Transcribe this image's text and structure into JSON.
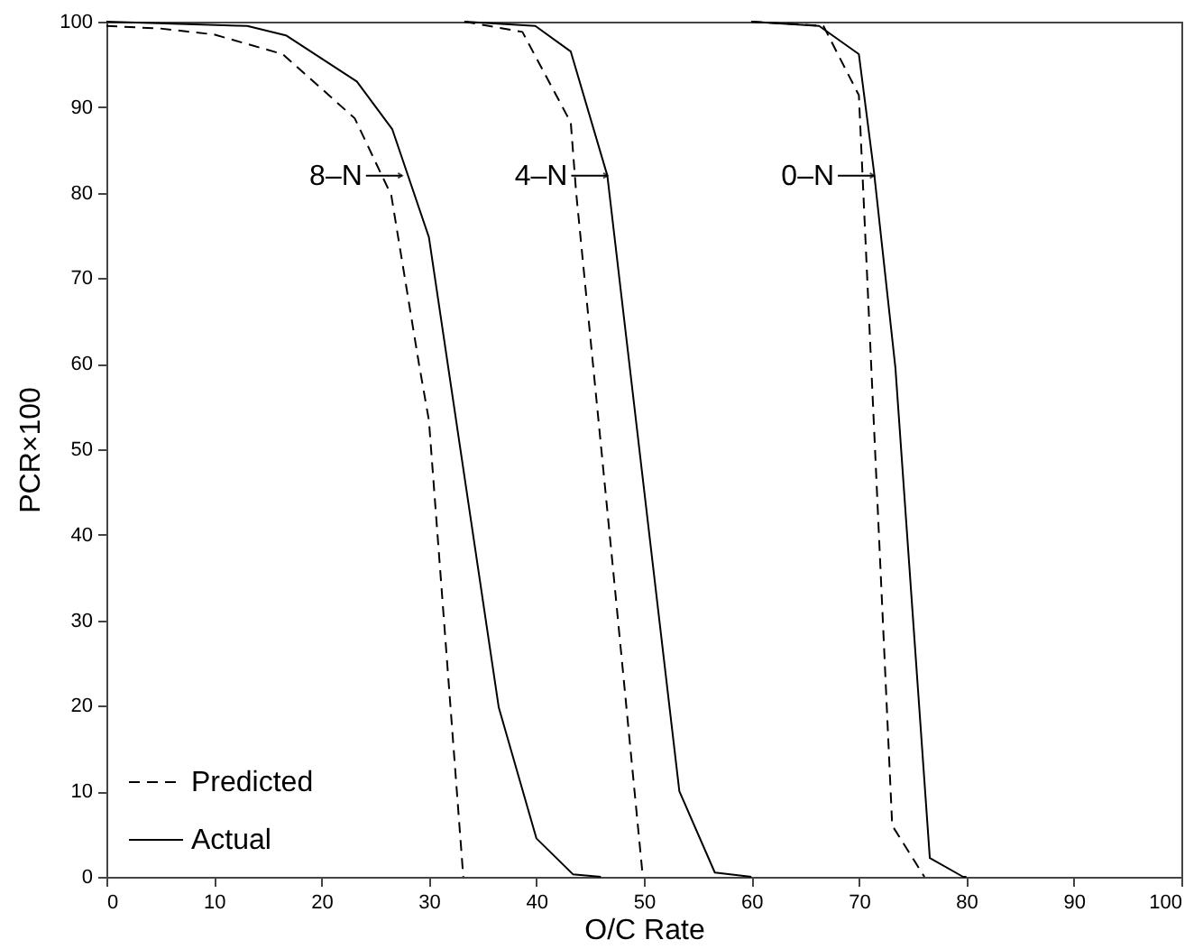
{
  "chart_data": {
    "type": "line",
    "xlabel": "O/C Rate",
    "ylabel": "PCR×100",
    "xlim": [
      0,
      100
    ],
    "ylim": [
      0,
      100
    ],
    "xticks": [
      0,
      10,
      20,
      30,
      40,
      50,
      60,
      70,
      80,
      90,
      100
    ],
    "yticks": [
      0,
      10,
      20,
      30,
      40,
      50,
      60,
      70,
      80,
      90,
      100
    ],
    "grid": false,
    "legend": "bottom left",
    "marker": "none",
    "series": [
      {
        "name": "Predicted",
        "color": "#000000",
        "line_style": "dashed",
        "x": [
          0,
          5,
          10,
          16.4,
          23.1,
          26.5,
          29.1,
          30,
          33.2,
          null,
          33.3,
          38.7,
          43.2,
          43.7,
          47.1,
          49.9,
          null,
          60,
          66.7,
          70,
          73.1,
          76.1
        ],
        "values": [
          99.5,
          99.2,
          98.5,
          96.2,
          88.7,
          79.7,
          59.8,
          53.4,
          0,
          null,
          100,
          98.8,
          88.2,
          80,
          36.4,
          0,
          null,
          100,
          99.5,
          91.4,
          6,
          0
        ]
      },
      {
        "name": "Actual",
        "color": "#000000",
        "line_style": "solid",
        "x": [
          0,
          13.1,
          16.7,
          23.3,
          26.6,
          30,
          36.5,
          40,
          43.4,
          46,
          null,
          33.3,
          39.9,
          43.2,
          46.6,
          53.3,
          56.6,
          60,
          null,
          60,
          66.3,
          70,
          71.4,
          73.4,
          76.6,
          79.7,
          80
        ],
        "values": [
          100,
          99.5,
          98.4,
          93,
          87.4,
          74.8,
          19.8,
          4.5,
          0.3,
          0,
          null,
          100,
          99.5,
          96.5,
          82,
          10,
          0.5,
          0,
          null,
          100,
          99.5,
          96.2,
          82.5,
          59.5,
          2.2,
          0,
          0
        ]
      }
    ],
    "annotations": [
      {
        "text": "8–N",
        "x": 27.5,
        "y": 82
      },
      {
        "text": "4–N",
        "x": 46.6,
        "y": 82
      },
      {
        "text": "0–N",
        "x": 71.4,
        "y": 82
      }
    ]
  }
}
